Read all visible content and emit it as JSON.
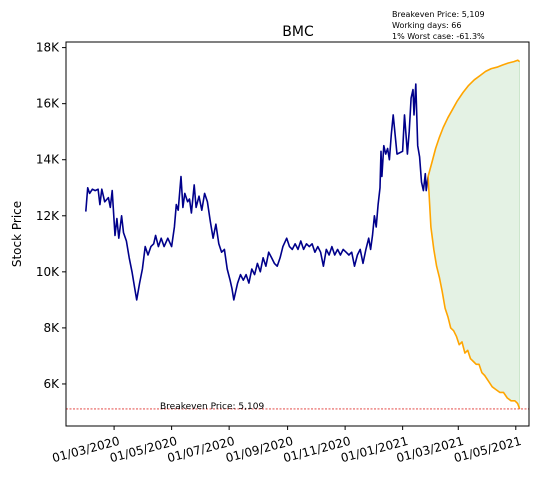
{
  "chart_data": {
    "type": "line",
    "title": "BMC",
    "xlabel": "",
    "ylabel": "Stock Price",
    "xlim": [
      "2020-01-10",
      "2021-05-15"
    ],
    "ylim": [
      4500,
      18200
    ],
    "x_ticks": [
      {
        "date": "2020-03-01",
        "label": "01/03/2020"
      },
      {
        "date": "2020-05-01",
        "label": "01/05/2020"
      },
      {
        "date": "2020-07-01",
        "label": "01/07/2020"
      },
      {
        "date": "2020-09-01",
        "label": "01/09/2020"
      },
      {
        "date": "2020-11-01",
        "label": "01/11/2020"
      },
      {
        "date": "2021-01-01",
        "label": "01/01/2021"
      },
      {
        "date": "2021-03-01",
        "label": "01/03/2021"
      },
      {
        "date": "2021-05-01",
        "label": "01/05/2021"
      }
    ],
    "y_ticks": [
      {
        "value": 6000,
        "label": "6K"
      },
      {
        "value": 8000,
        "label": "8K"
      },
      {
        "value": 10000,
        "label": "10K"
      },
      {
        "value": 12000,
        "label": "12K"
      },
      {
        "value": 14000,
        "label": "14K"
      },
      {
        "value": 16000,
        "label": "16K"
      },
      {
        "value": 18000,
        "label": "18K"
      }
    ],
    "info_lines": [
      "Breakeven Price: 5,109",
      "Working days: 66",
      "1% Worst case: -61.3%"
    ],
    "breakeven": {
      "value": 5109,
      "label": "Breakeven Price: 5,109",
      "color": "#e0302c"
    },
    "series": [
      {
        "role": "historical",
        "color": "#00008b",
        "points": [
          [
            "2020-01-31",
            12150
          ],
          [
            "2020-02-02",
            13000
          ],
          [
            "2020-02-04",
            12800
          ],
          [
            "2020-02-07",
            12950
          ],
          [
            "2020-02-10",
            12900
          ],
          [
            "2020-02-13",
            12950
          ],
          [
            "2020-02-15",
            12400
          ],
          [
            "2020-02-17",
            12950
          ],
          [
            "2020-02-20",
            12500
          ],
          [
            "2020-02-24",
            12650
          ],
          [
            "2020-02-26",
            12300
          ],
          [
            "2020-02-28",
            12900
          ],
          [
            "2020-03-02",
            11300
          ],
          [
            "2020-03-04",
            11900
          ],
          [
            "2020-03-06",
            11200
          ],
          [
            "2020-03-09",
            12000
          ],
          [
            "2020-03-11",
            11400
          ],
          [
            "2020-03-14",
            11100
          ],
          [
            "2020-03-17",
            10500
          ],
          [
            "2020-03-20",
            10000
          ],
          [
            "2020-03-23",
            9400
          ],
          [
            "2020-03-25",
            9000
          ],
          [
            "2020-03-28",
            9600
          ],
          [
            "2020-03-31",
            10100
          ],
          [
            "2020-04-03",
            10900
          ],
          [
            "2020-04-06",
            10600
          ],
          [
            "2020-04-09",
            10900
          ],
          [
            "2020-04-12",
            11000
          ],
          [
            "2020-04-14",
            11300
          ],
          [
            "2020-04-17",
            10900
          ],
          [
            "2020-04-20",
            11200
          ],
          [
            "2020-04-23",
            10900
          ],
          [
            "2020-04-27",
            11200
          ],
          [
            "2020-05-01",
            10900
          ],
          [
            "2020-05-04",
            11600
          ],
          [
            "2020-05-06",
            12400
          ],
          [
            "2020-05-08",
            12200
          ],
          [
            "2020-05-11",
            13400
          ],
          [
            "2020-05-13",
            12300
          ],
          [
            "2020-05-15",
            12800
          ],
          [
            "2020-05-18",
            12500
          ],
          [
            "2020-05-20",
            12600
          ],
          [
            "2020-05-22",
            12100
          ],
          [
            "2020-05-25",
            13100
          ],
          [
            "2020-05-27",
            12300
          ],
          [
            "2020-05-30",
            12700
          ],
          [
            "2020-06-02",
            12200
          ],
          [
            "2020-06-05",
            12800
          ],
          [
            "2020-06-08",
            12500
          ],
          [
            "2020-06-11",
            11800
          ],
          [
            "2020-06-14",
            11200
          ],
          [
            "2020-06-17",
            11700
          ],
          [
            "2020-06-20",
            11000
          ],
          [
            "2020-06-23",
            10700
          ],
          [
            "2020-06-26",
            10800
          ],
          [
            "2020-06-29",
            10100
          ],
          [
            "2020-07-02",
            9700
          ],
          [
            "2020-07-04",
            9400
          ],
          [
            "2020-07-06",
            9000
          ],
          [
            "2020-07-08",
            9300
          ],
          [
            "2020-07-10",
            9600
          ],
          [
            "2020-07-13",
            9900
          ],
          [
            "2020-07-16",
            9700
          ],
          [
            "2020-07-19",
            9900
          ],
          [
            "2020-07-22",
            9600
          ],
          [
            "2020-07-25",
            10100
          ],
          [
            "2020-07-28",
            9900
          ],
          [
            "2020-07-31",
            10300
          ],
          [
            "2020-08-03",
            10000
          ],
          [
            "2020-08-06",
            10500
          ],
          [
            "2020-08-09",
            10200
          ],
          [
            "2020-08-12",
            10700
          ],
          [
            "2020-08-15",
            10500
          ],
          [
            "2020-08-18",
            10300
          ],
          [
            "2020-08-21",
            10200
          ],
          [
            "2020-08-24",
            10500
          ],
          [
            "2020-08-27",
            10900
          ],
          [
            "2020-08-31",
            11200
          ],
          [
            "2020-09-03",
            10900
          ],
          [
            "2020-09-06",
            10800
          ],
          [
            "2020-09-09",
            11000
          ],
          [
            "2020-09-12",
            10800
          ],
          [
            "2020-09-15",
            11100
          ],
          [
            "2020-09-18",
            10800
          ],
          [
            "2020-09-21",
            11000
          ],
          [
            "2020-09-24",
            10900
          ],
          [
            "2020-09-27",
            11000
          ],
          [
            "2020-09-30",
            10700
          ],
          [
            "2020-10-03",
            10900
          ],
          [
            "2020-10-06",
            10700
          ],
          [
            "2020-10-09",
            10200
          ],
          [
            "2020-10-12",
            10800
          ],
          [
            "2020-10-15",
            10600
          ],
          [
            "2020-10-18",
            10900
          ],
          [
            "2020-10-21",
            10600
          ],
          [
            "2020-10-24",
            10800
          ],
          [
            "2020-10-27",
            10600
          ],
          [
            "2020-10-30",
            10800
          ],
          [
            "2020-11-02",
            10700
          ],
          [
            "2020-11-05",
            10600
          ],
          [
            "2020-11-08",
            10700
          ],
          [
            "2020-11-11",
            10200
          ],
          [
            "2020-11-14",
            10600
          ],
          [
            "2020-11-17",
            10800
          ],
          [
            "2020-11-20",
            10300
          ],
          [
            "2020-11-23",
            10800
          ],
          [
            "2020-11-26",
            11200
          ],
          [
            "2020-11-28",
            10800
          ],
          [
            "2020-11-30",
            11300
          ],
          [
            "2020-12-02",
            12000
          ],
          [
            "2020-12-04",
            11600
          ],
          [
            "2020-12-06",
            12400
          ],
          [
            "2020-12-08",
            13000
          ],
          [
            "2020-12-09",
            14300
          ],
          [
            "2020-12-10",
            13400
          ],
          [
            "2020-12-12",
            14500
          ],
          [
            "2020-12-14",
            14200
          ],
          [
            "2020-12-16",
            14400
          ],
          [
            "2020-12-18",
            14000
          ],
          [
            "2020-12-20",
            14900
          ],
          [
            "2020-12-22",
            15600
          ],
          [
            "2020-12-24",
            14900
          ],
          [
            "2020-12-26",
            14200
          ],
          [
            "2021-01-01",
            14300
          ],
          [
            "2021-01-03",
            15600
          ],
          [
            "2021-01-05",
            14700
          ],
          [
            "2021-01-06",
            14200
          ],
          [
            "2021-01-08",
            15000
          ],
          [
            "2021-01-10",
            16200
          ],
          [
            "2021-01-12",
            16500
          ],
          [
            "2021-01-13",
            15600
          ],
          [
            "2021-01-15",
            16700
          ],
          [
            "2021-01-17",
            14500
          ],
          [
            "2021-01-19",
            14100
          ],
          [
            "2021-01-21",
            13200
          ],
          [
            "2021-01-23",
            12900
          ],
          [
            "2021-01-25",
            13500
          ],
          [
            "2021-01-26",
            12900
          ],
          [
            "2021-01-28",
            13400
          ]
        ]
      },
      {
        "role": "forecast-upper",
        "color": "#ffa500",
        "points": [
          [
            "2021-01-28",
            13400
          ],
          [
            "2021-02-01",
            13900
          ],
          [
            "2021-02-05",
            14400
          ],
          [
            "2021-02-09",
            14800
          ],
          [
            "2021-02-13",
            15150
          ],
          [
            "2021-02-18",
            15500
          ],
          [
            "2021-02-23",
            15800
          ],
          [
            "2021-02-28",
            16100
          ],
          [
            "2021-03-06",
            16400
          ],
          [
            "2021-03-12",
            16650
          ],
          [
            "2021-03-18",
            16850
          ],
          [
            "2021-03-24",
            17000
          ],
          [
            "2021-03-30",
            17150
          ],
          [
            "2021-04-05",
            17250
          ],
          [
            "2021-04-11",
            17300
          ],
          [
            "2021-04-17",
            17380
          ],
          [
            "2021-04-23",
            17450
          ],
          [
            "2021-04-29",
            17500
          ],
          [
            "2021-05-03",
            17550
          ],
          [
            "2021-05-05",
            17500
          ]
        ]
      },
      {
        "role": "forecast-lower",
        "color": "#ffa500",
        "points": [
          [
            "2021-01-28",
            13400
          ],
          [
            "2021-01-31",
            11600
          ],
          [
            "2021-02-03",
            10800
          ],
          [
            "2021-02-06",
            10200
          ],
          [
            "2021-02-09",
            9800
          ],
          [
            "2021-02-12",
            9300
          ],
          [
            "2021-02-15",
            8700
          ],
          [
            "2021-02-18",
            8400
          ],
          [
            "2021-02-21",
            8000
          ],
          [
            "2021-02-24",
            7900
          ],
          [
            "2021-02-27",
            7700
          ],
          [
            "2021-03-02",
            7400
          ],
          [
            "2021-03-05",
            7500
          ],
          [
            "2021-03-08",
            7100
          ],
          [
            "2021-03-11",
            7200
          ],
          [
            "2021-03-14",
            6900
          ],
          [
            "2021-03-17",
            6800
          ],
          [
            "2021-03-20",
            6700
          ],
          [
            "2021-03-23",
            6700
          ],
          [
            "2021-03-26",
            6400
          ],
          [
            "2021-03-29",
            6300
          ],
          [
            "2021-04-02",
            6100
          ],
          [
            "2021-04-06",
            5900
          ],
          [
            "2021-04-10",
            5800
          ],
          [
            "2021-04-14",
            5700
          ],
          [
            "2021-04-18",
            5700
          ],
          [
            "2021-04-22",
            5500
          ],
          [
            "2021-04-26",
            5400
          ],
          [
            "2021-04-30",
            5400
          ],
          [
            "2021-05-03",
            5300
          ],
          [
            "2021-05-05",
            5109
          ]
        ]
      }
    ],
    "fill_color": "#e4f2e4",
    "grid": false,
    "legend": "none"
  }
}
